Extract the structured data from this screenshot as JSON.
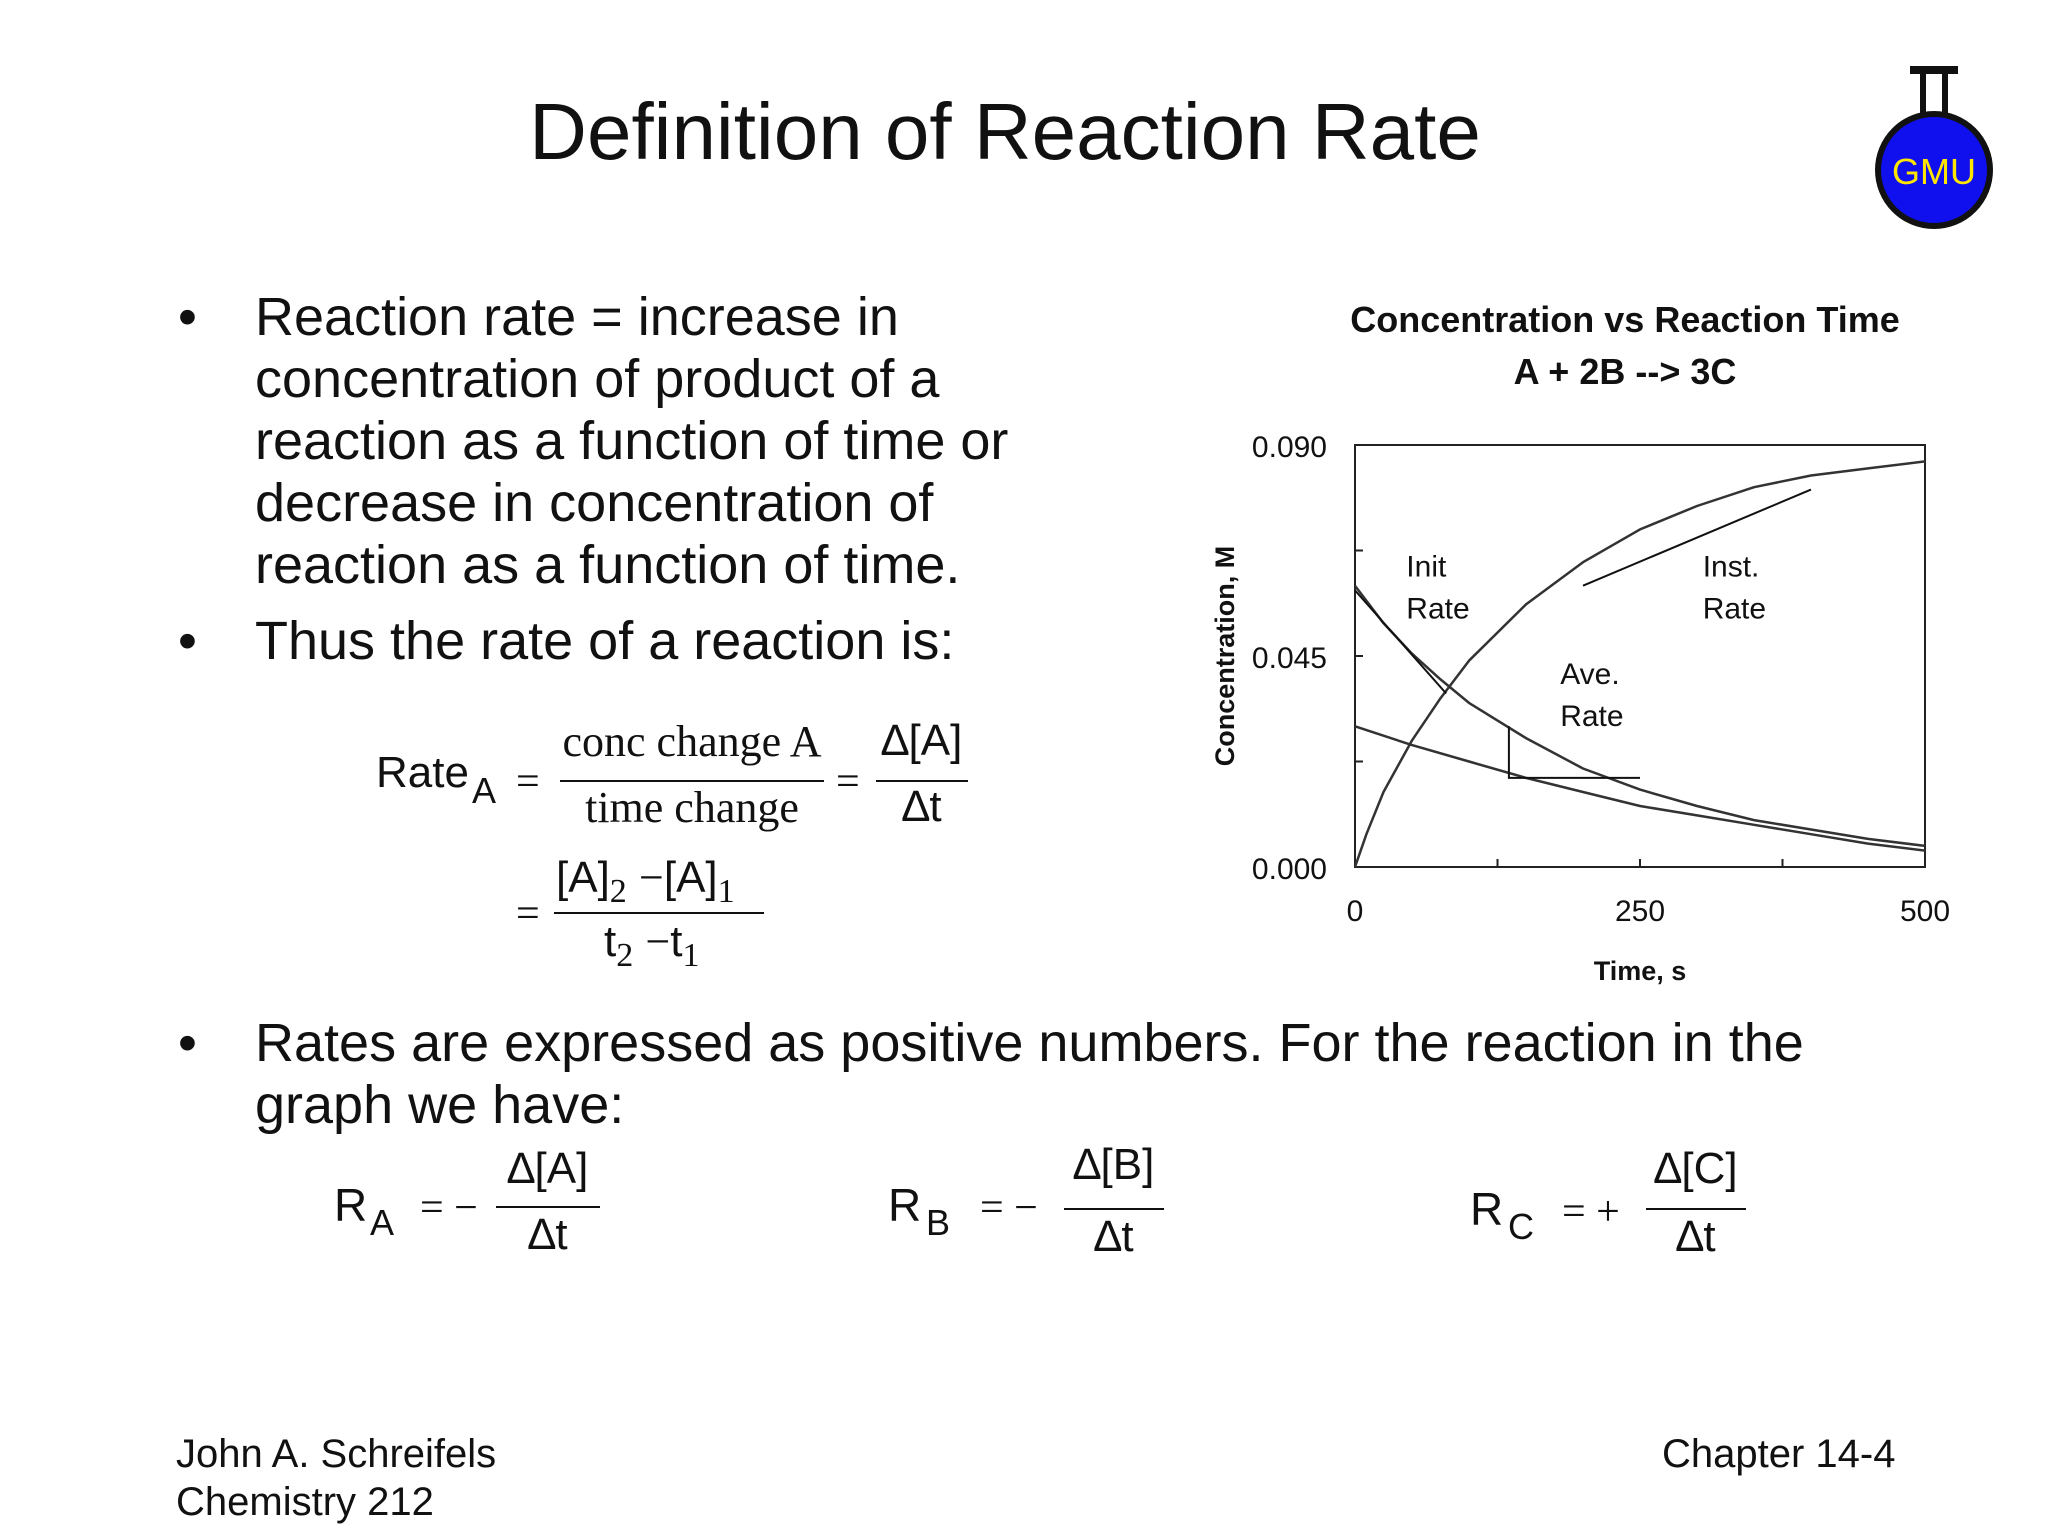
{
  "slide": {
    "title": "Definition of Reaction Rate",
    "logo_text": "GMU",
    "logo_color": "#1010ee",
    "bullets": [
      "Reaction rate = increase in concentration of product of a reaction as a function of time or decrease in concentration of reaction as a function of time.",
      "Thus the rate of a reaction is:",
      "Rates are expressed as positive numbers.  For the reaction in the graph we have:"
    ],
    "bullet_symbol": "•",
    "footer": {
      "author": "John A. Schreifels",
      "course": "Chemistry 212",
      "chapter": "Chapter 14-4"
    }
  },
  "equations": {
    "rate_def": {
      "lhs": "Rate",
      "lhs_sub": "A",
      "eq1": "=",
      "frac1_num": "conc change A",
      "frac1_den": "time change",
      "eq2": "=",
      "frac2_num": "∆[A]",
      "frac2_den": "∆t",
      "eq3": "=",
      "frac3_num_a": "[A]",
      "frac3_num_a_sub": "2",
      "frac3_minus": "−",
      "frac3_num_b": "[A]",
      "frac3_num_b_sub": "1",
      "frac3_den_a": "t",
      "frac3_den_a_sub": "2",
      "frac3_den_minus": "−",
      "frac3_den_b": "t",
      "frac3_den_b_sub": "1"
    },
    "rate_a": {
      "lhs": "R",
      "sub": "A",
      "op": "= −",
      "num": "∆[A]",
      "den": "∆t"
    },
    "rate_b": {
      "lhs": "R",
      "sub": "B",
      "op": "= −",
      "num": "∆[B]",
      "den": "∆t"
    },
    "rate_c": {
      "lhs": "R",
      "sub": "C",
      "op": "= +",
      "num": "∆[C]",
      "den": "∆t"
    }
  },
  "chart_data": {
    "type": "line",
    "title": "Concentration vs Reaction Time",
    "subtitle": "A + 2B --> 3C",
    "xlabel": "Time, s",
    "ylabel": "Concentration, M",
    "xlim": [
      0,
      500
    ],
    "ylim": [
      0,
      0.09
    ],
    "xticks": [
      "0",
      "250",
      "500"
    ],
    "yticks": [
      "0.000",
      "0.045",
      "0.090"
    ],
    "grid": false,
    "series": [
      {
        "x": [
          0,
          25,
          50,
          75,
          100,
          150,
          200,
          250,
          300,
          350,
          400,
          450,
          500
        ],
        "y": [
          0.06,
          0.052,
          0.0455,
          0.04,
          0.035,
          0.0275,
          0.021,
          0.0165,
          0.013,
          0.01,
          0.008,
          0.006,
          0.0045
        ]
      },
      {
        "x": [
          0,
          50,
          100,
          150,
          200,
          250,
          300,
          350,
          400,
          450,
          500
        ],
        "y": [
          0.03,
          0.026,
          0.0225,
          0.019,
          0.016,
          0.013,
          0.011,
          0.009,
          0.007,
          0.005,
          0.0035
        ]
      },
      {
        "x": [
          0,
          10,
          25,
          50,
          75,
          100,
          150,
          200,
          250,
          300,
          350,
          400,
          450,
          500
        ],
        "y": [
          0.0,
          0.007,
          0.016,
          0.027,
          0.036,
          0.044,
          0.056,
          0.065,
          0.072,
          0.077,
          0.081,
          0.0835,
          0.085,
          0.0865
        ]
      }
    ],
    "tangent_lines": [
      {
        "label": "Init Rate",
        "x": [
          0,
          80
        ],
        "y": [
          0.059,
          0.037
        ]
      },
      {
        "label": "Inst. Rate",
        "x": [
          200,
          400
        ],
        "y": [
          0.06,
          0.0805
        ]
      }
    ],
    "average_rate_triangle": {
      "label": "Ave. Rate",
      "x": [
        135,
        135,
        250
      ],
      "y": [
        0.03,
        0.019,
        0.019
      ]
    },
    "annotations": [
      {
        "text_lines": [
          "Init",
          "Rate"
        ],
        "x": 45,
        "y": 0.062
      },
      {
        "text_lines": [
          "Inst.",
          "Rate"
        ],
        "x": 305,
        "y": 0.062
      },
      {
        "text_lines": [
          "Ave.",
          "Rate"
        ],
        "x": 180,
        "y": 0.039
      }
    ]
  }
}
